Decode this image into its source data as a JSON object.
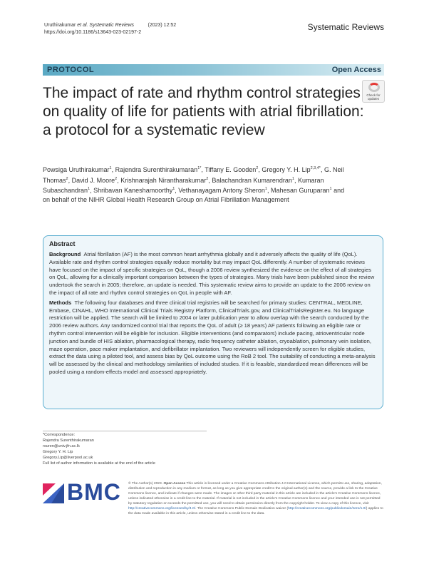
{
  "header": {
    "citation_authors": "Uruthirakumar ",
    "citation_journal": "et al. Systematic Reviews",
    "citation_year": "(2023) 12:52",
    "doi": "https://doi.org/10.1186/s13643-023-02197-2",
    "journal_name": "Systematic Reviews"
  },
  "banner": {
    "article_type": "PROTOCOL",
    "access": "Open Access"
  },
  "title": "The impact of rate and rhythm control strategies on quality of life for patients with atrial fibrillation: a protocol for a systematic review",
  "check_updates": {
    "line1": "Check for",
    "line2": "updates"
  },
  "authors": [
    {
      "name": "Powsiga Uruthirakumar",
      "sup": "1",
      "sep": ", "
    },
    {
      "name": "Rajendra Surenthirakumaran",
      "sup": "1*",
      "sep": ", "
    },
    {
      "name": "Tiffany E. Gooden",
      "sup": "2",
      "sep": ", "
    },
    {
      "name": "Gregory Y. H. Lip",
      "sup": "2,3,4*",
      "sep": ", "
    },
    {
      "name": "G. Neil Thomas",
      "sup": "2",
      "sep": ", "
    },
    {
      "name": "David J. Moore",
      "sup": "2",
      "sep": ", "
    },
    {
      "name": "Krishnarajah Nirantharakumar",
      "sup": "2",
      "sep": ", "
    },
    {
      "name": "Balachandran Kumarendran",
      "sup": "1",
      "sep": ", "
    },
    {
      "name": "Kumaran Subaschandran",
      "sup": "1",
      "sep": ", "
    },
    {
      "name": "Shribavan Kaneshamoorthy",
      "sup": "1",
      "sep": ", "
    },
    {
      "name": "Vethanayagam Antony Sheron",
      "sup": "1",
      "sep": ", "
    },
    {
      "name": "Mahesan Guruparan",
      "sup": "1",
      "sep": " and on behalf of the NIHR Global Health Research Group on Atrial Fibrillation Management"
    }
  ],
  "abstract": {
    "heading": "Abstract",
    "background_label": "Background",
    "background_text": "Atrial fibrillation (AF) is the most common heart arrhythmia globally and it adversely affects the quality of life (QoL). Available rate and rhythm control strategies equally reduce mortality but may impact QoL differently. A number of systematic reviews have focused on the impact of specific strategies on QoL, though a 2006 review synthesized the evidence on the effect of all strategies on QoL, allowing for a clinically important comparison between the types of strategies. Many trials have been published since the review undertook the search in 2005; therefore, an update is needed. This systematic review aims to provide an update to the 2006 review on the impact of all rate and rhythm control strategies on QoL in people with AF.",
    "methods_label": "Methods",
    "methods_text": "The following four databases and three clinical trial registries will be searched for primary studies: CENTRAL, MEDLINE, Embase, CINAHL, WHO International Clinical Trials Registry Platform, ClinicalTrials.gov, and ClinicalTrialsRegister.eu. No language restriction will be applied. The search will be limited to 2004 or later publication year to allow overlap with the search conducted by the 2006 review authors. Any randomized control trial that reports the QoL of adult (≥ 18 years) AF patients following an eligible rate or rhythm control intervention will be eligible for inclusion. Eligible interventions (and comparators) include pacing, atrioventricular node junction and bundle of HIS ablation, pharmacological therapy, radio frequency catheter ablation, cryoablation, pulmonary vein isolation, maze operation, pace maker implantation, and defibrillator implantation. Two reviewers will independently screen for eligible studies, extract the data using a piloted tool, and assess bias by QoL outcome using the RoB 2 tool. The suitability of conducting a meta-analysis will be assessed by the clinical and methodology similarities of included studies. If it is feasible, standardized mean differences will be pooled using a random-effects model and assessed appropriately."
  },
  "footnotes": [
    "*Correspondence:",
    "Rajendra Surenthirakumaran",
    "rsuren@univ.jfn.ac.lk",
    "Gregory Y. H. Lip",
    "Gregory.Lip@liverpool.ac.uk",
    "Full list of author information is available at the end of the article"
  ],
  "publisher": {
    "logo_text": "BMC",
    "brand_color": "#2a4b9b"
  },
  "license": {
    "intro": "© The Author(s) 2023. ",
    "oa_bold": "Open Access",
    "body1": " This article is licensed under a Creative Commons Attribution 4.0 International License, which permits use, sharing, adaptation, distribution and reproduction in any medium or format, as long as you give appropriate credit to the original author(s) and the source, provide a link to the Creative Commons licence, and indicate if changes were made. The images or other third party material in this article are included in the article's Creative Commons licence, unless indicated otherwise in a credit line to the material. If material is not included in the article's Creative Commons licence and your intended use is not permitted by statutory regulation or exceeds the permitted use, you will need to obtain permission directly from the copyright holder. To view a copy of this licence, visit ",
    "link1": "http://creativecommons.org/licenses/by/4.0/",
    "body2": ". The Creative Commons Public Domain Dedication waiver (",
    "link2": "http://creativecommons.org/publicdomain/zero/1.0/",
    "body3": ") applies to the data made available in this article, unless otherwise stated in a credit line to the data."
  }
}
